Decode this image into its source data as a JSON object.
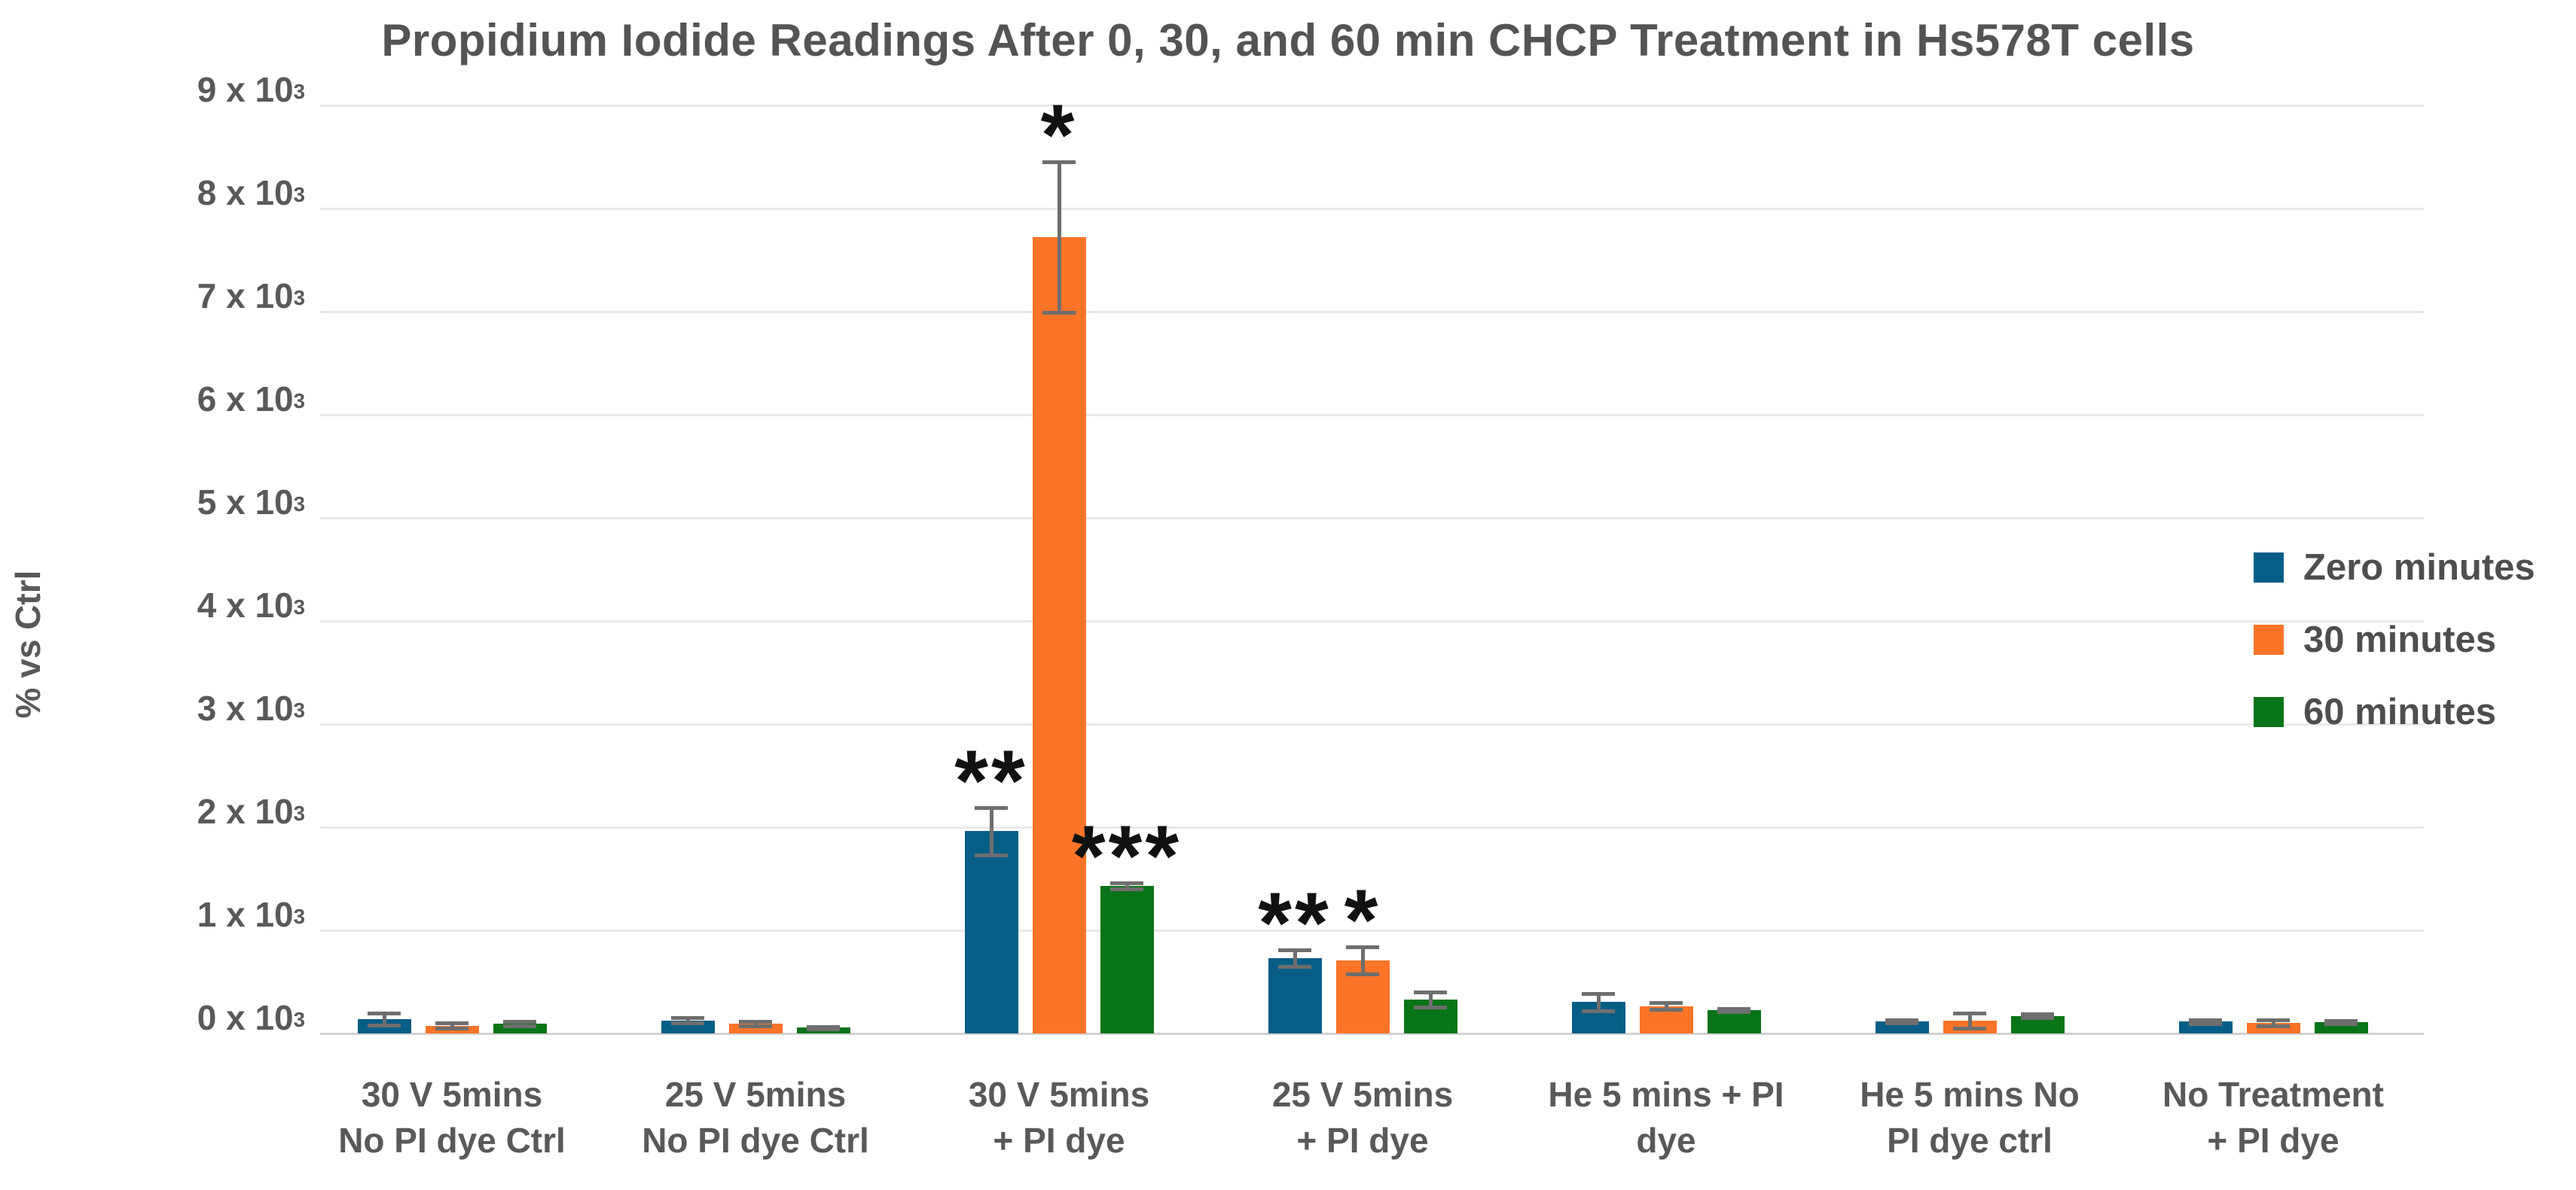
{
  "chart_data": {
    "type": "bar",
    "title": "Propidium Iodide Readings After 0, 30, and 60 min CHCP Treatment in Hs578T cells",
    "xlabel": "",
    "ylabel": "% vs Ctrl",
    "ylim": [
      0,
      9000
    ],
    "grid": true,
    "legend_position": "right",
    "y_tick_labels": [
      "0 x 10^3",
      "1 x 10^3",
      "2 x 10^3",
      "3 x 10^3",
      "4 x 10^3",
      "5 x 10^3",
      "6 x 10^3",
      "7 x 10^3",
      "8 x 10^3",
      "9 x 10^3"
    ],
    "categories": [
      [
        "30 V 5mins",
        "No PI dye Ctrl"
      ],
      [
        "25 V 5mins",
        "No PI dye Ctrl"
      ],
      [
        "30 V 5mins",
        "+ PI dye"
      ],
      [
        "25 V 5mins",
        "+ PI dye"
      ],
      [
        "He 5 mins + PI",
        "dye"
      ],
      [
        "He 5 mins No",
        "PI dye ctrl"
      ],
      [
        "No Treatment",
        "+ PI dye"
      ]
    ],
    "series": [
      {
        "name": "Zero minutes",
        "color": "#065e86",
        "values": [
          140,
          125,
          1960,
          730,
          305,
          115,
          115
        ],
        "errors": [
          60,
          25,
          230,
          80,
          85,
          15,
          20
        ],
        "significance": [
          "",
          "",
          "**",
          "**",
          "",
          "",
          ""
        ]
      },
      {
        "name": "30 minutes",
        "color": "#fb7428",
        "values": [
          75,
          95,
          7720,
          710,
          265,
          125,
          105
        ],
        "errors": [
          25,
          20,
          730,
          130,
          35,
          75,
          30
        ],
        "significance": [
          "",
          "",
          "*",
          "*",
          "",
          "",
          ""
        ]
      },
      {
        "name": "60 minutes",
        "color": "#087418",
        "values": [
          95,
          55,
          1430,
          330,
          225,
          170,
          110
        ],
        "errors": [
          20,
          12,
          30,
          75,
          15,
          20,
          15
        ],
        "significance": [
          "",
          "",
          "***",
          "",
          "",
          "",
          ""
        ]
      }
    ],
    "colors": {
      "grid": "#e9e9e9",
      "axis_line": "#d2d2d2",
      "text": "#595959",
      "error_bar": "#6e6e6e",
      "significance": "#111111",
      "background": "#ffffff"
    }
  }
}
